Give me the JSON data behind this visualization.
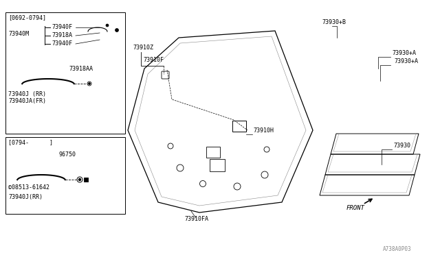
{
  "bg_color": "#ffffff",
  "line_color": "#000000",
  "fig_width": 6.4,
  "fig_height": 3.72,
  "watermark": "A738A0P03",
  "box1_label": "[0692-0794]",
  "box2_label": "[0794-      ]",
  "parts": {
    "73940F_top": "73940F",
    "73940M": "73940M",
    "73918A": "73918A",
    "73940F_mid": "73940F",
    "73918AA": "73918AA",
    "73940J_RR": "73940J (RR)",
    "73940JA_FR": "73940JA(FR)",
    "96750": "96750",
    "08513": "©08513-61642",
    "73940J_RR2": "73940J(RR)",
    "73910Z": "73910Z",
    "73910F": "73910F",
    "73910H": "73910H",
    "73910FA": "73910FA",
    "73930pB": "73930+B",
    "73930pA_1": "73930+A",
    "73930pA_2": "73930+A",
    "73930": "73930",
    "FRONT": "FRONT"
  }
}
